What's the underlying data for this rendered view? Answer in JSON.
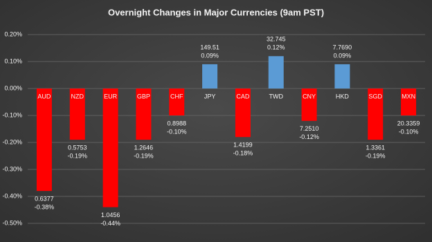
{
  "chart_data": {
    "type": "bar",
    "title": "Overnight Changes in Major Currencies (9am PST)",
    "categories": [
      "AUD",
      "NZD",
      "EUR",
      "GBP",
      "CHF",
      "JPY",
      "CAD",
      "TWD",
      "CNY",
      "HKD",
      "SGD",
      "MXN"
    ],
    "values": [
      -0.38,
      -0.19,
      -0.44,
      -0.19,
      -0.1,
      0.09,
      -0.18,
      0.12,
      -0.12,
      0.09,
      -0.19,
      -0.1
    ],
    "value_labels": [
      "-0.38%",
      "-0.19%",
      "-0.44%",
      "-0.19%",
      "-0.10%",
      "0.09%",
      "-0.18%",
      "0.12%",
      "-0.12%",
      "0.09%",
      "-0.19%",
      "-0.10%"
    ],
    "rates": [
      "0.6377",
      "0.5753",
      "1.0456",
      "1.2646",
      "0.8988",
      "149.51",
      "1.4199",
      "32.745",
      "7.2510",
      "7.7690",
      "1.3361",
      "20.3359"
    ],
    "colors": [
      "#ff0000",
      "#ff0000",
      "#ff0000",
      "#ff0000",
      "#ff0000",
      "#5b9bd5",
      "#ff0000",
      "#5b9bd5",
      "#ff0000",
      "#5b9bd5",
      "#ff0000",
      "#ff0000"
    ],
    "ylim": [
      -0.5,
      0.2
    ],
    "yticks": [
      {
        "value": 0.2,
        "label": "0.20%"
      },
      {
        "value": 0.1,
        "label": "0.10%"
      },
      {
        "value": 0,
        "label": "0.00%"
      },
      {
        "value": -0.1,
        "label": "-0.10%"
      },
      {
        "value": -0.2,
        "label": "-0.20%"
      },
      {
        "value": -0.3,
        "label": "-0.30%"
      },
      {
        "value": -0.4,
        "label": "-0.40%"
      },
      {
        "value": -0.5,
        "label": "-0.50%"
      }
    ],
    "grid": true
  }
}
